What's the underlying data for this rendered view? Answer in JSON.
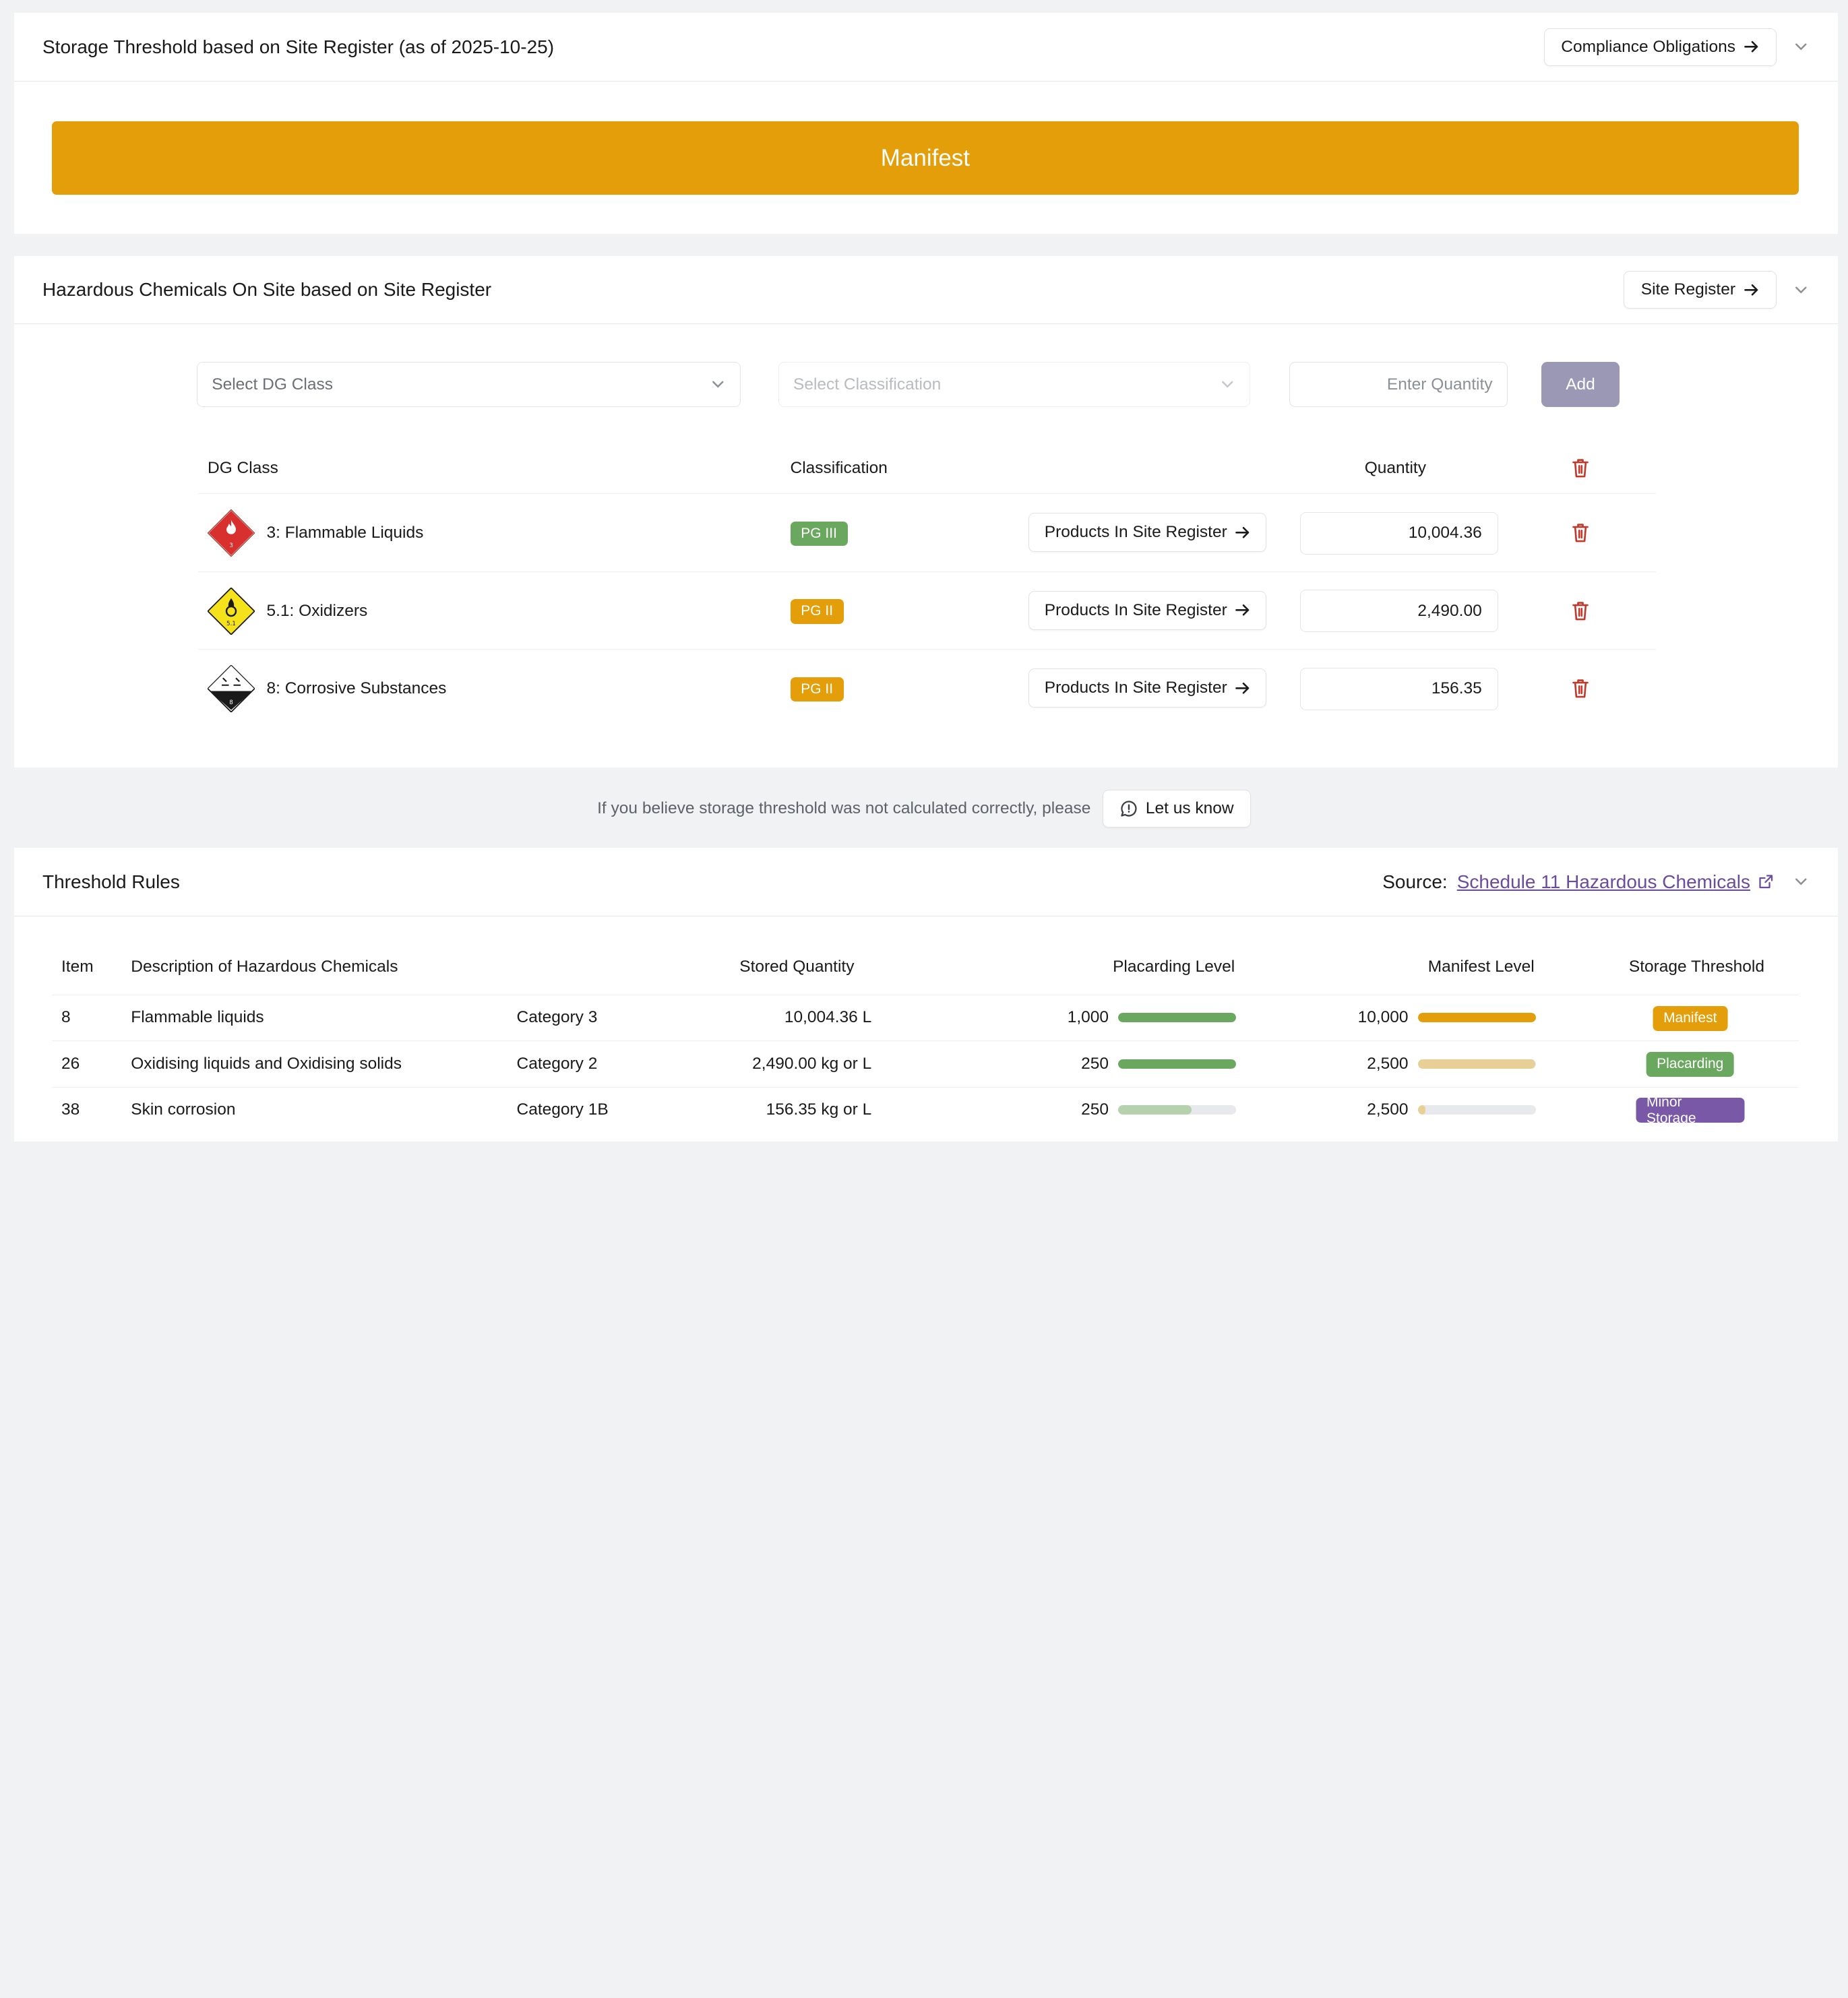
{
  "threshold_card": {
    "title": "Storage Threshold based on Site Register (as of 2025-10-25)",
    "compliance_button": "Compliance Obligations",
    "banner": "Manifest",
    "banner_color": "#e39e0a"
  },
  "chemicals_card": {
    "title": "Hazardous Chemicals On Site based on Site Register",
    "site_register_button": "Site Register",
    "dg_class_placeholder": "Select DG Class",
    "classification_placeholder": "Select Classification",
    "quantity_placeholder": "Enter Quantity",
    "add_label": "Add",
    "headers": {
      "dg_class": "DG Class",
      "classification": "Classification",
      "quantity": "Quantity"
    },
    "rows": [
      {
        "dg_class": "3: Flammable Liquids",
        "icon": "flammable-liquid-diamond-icon",
        "pg": "PG III",
        "pg_color": "#6aa85f",
        "products_label": "Products In Site Register",
        "quantity": "10,004.36"
      },
      {
        "dg_class": "5.1: Oxidizers",
        "icon": "oxidizer-diamond-icon",
        "pg": "PG II",
        "pg_color": "#e39e0a",
        "products_label": "Products In Site Register",
        "quantity": "2,490.00"
      },
      {
        "dg_class": "8: Corrosive Substances",
        "icon": "corrosive-diamond-icon",
        "pg": "PG II",
        "pg_color": "#e39e0a",
        "products_label": "Products In Site Register",
        "quantity": "156.35"
      }
    ]
  },
  "notice": {
    "text": "If you believe storage threshold was not calculated correctly, please",
    "button": "Let us know"
  },
  "rules_card": {
    "title": "Threshold Rules",
    "source_label": "Source:",
    "source_link": "Schedule 11 Hazardous Chemicals",
    "headers": {
      "item": "Item",
      "description": "Description of Hazardous Chemicals",
      "stored": "Stored Quantity",
      "placarding": "Placarding Level",
      "manifest": "Manifest Level",
      "threshold": "Storage Threshold"
    },
    "rows": [
      {
        "item": "8",
        "description": "Flammable liquids",
        "category": "Category 3",
        "stored": "10,004.36 L",
        "placarding": "1,000",
        "placarding_fill": 1.0,
        "placarding_color": "#6aa85f",
        "manifest": "10,000",
        "manifest_fill": 1.0,
        "manifest_color": "#e39e0a",
        "threshold": "Manifest",
        "threshold_color": "#e39e0a"
      },
      {
        "item": "26",
        "description": "Oxidising liquids and Oxidising solids",
        "category": "Category 2",
        "stored": "2,490.00 kg or L",
        "placarding": "250",
        "placarding_fill": 1.0,
        "placarding_color": "#6aa85f",
        "manifest": "2,500",
        "manifest_fill": 0.996,
        "manifest_color": "#e8cf96",
        "threshold": "Placarding",
        "threshold_color": "#6aa85f"
      },
      {
        "item": "38",
        "description": "Skin corrosion",
        "category": "Category 1B",
        "stored": "156.35 kg or L",
        "placarding": "250",
        "placarding_fill": 0.625,
        "placarding_color": "#b6d1ae",
        "manifest": "2,500",
        "manifest_fill": 0.063,
        "manifest_color": "#e8cf96",
        "threshold": "Minor Storage",
        "threshold_color": "#7a58a8"
      }
    ]
  }
}
